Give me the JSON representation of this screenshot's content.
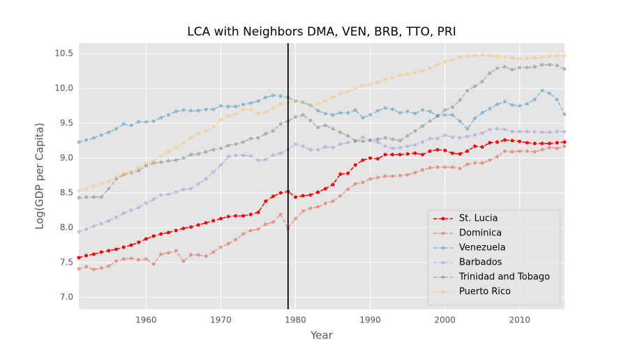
{
  "chart_data": {
    "type": "line",
    "title": "LCA with Neighbors DMA, VEN, BRB, TTO, PRI",
    "x_label": "Year",
    "y_label": "Log(GDP per Capita)",
    "x": [
      1951,
      1952,
      1953,
      1954,
      1955,
      1956,
      1957,
      1958,
      1959,
      1960,
      1961,
      1962,
      1963,
      1964,
      1965,
      1966,
      1967,
      1968,
      1969,
      1970,
      1971,
      1972,
      1973,
      1974,
      1975,
      1976,
      1977,
      1978,
      1979,
      1980,
      1981,
      1982,
      1983,
      1984,
      1985,
      1986,
      1987,
      1988,
      1989,
      1990,
      1991,
      1992,
      1993,
      1994,
      1995,
      1996,
      1997,
      1998,
      1999,
      2000,
      2001,
      2002,
      2003,
      2004,
      2005,
      2006,
      2007,
      2008,
      2009,
      2010,
      2011,
      2012,
      2013,
      2014,
      2015,
      2016
    ],
    "series": [
      {
        "name": "St. Lucia",
        "color": "#ff0000",
        "opacity": 1,
        "values": [
          7.57,
          7.6,
          7.62,
          7.65,
          7.67,
          7.69,
          7.72,
          7.75,
          7.79,
          7.84,
          7.88,
          7.91,
          7.93,
          7.96,
          7.99,
          8.01,
          8.04,
          8.07,
          8.1,
          8.13,
          8.16,
          8.17,
          8.17,
          8.19,
          8.22,
          8.38,
          8.45,
          8.5,
          8.52,
          8.44,
          8.46,
          8.47,
          8.51,
          8.56,
          8.62,
          8.77,
          8.78,
          8.9,
          8.97,
          9.0,
          8.99,
          9.05,
          9.05,
          9.05,
          9.06,
          9.07,
          9.05,
          9.1,
          9.12,
          9.11,
          9.07,
          9.06,
          9.1,
          9.17,
          9.16,
          9.22,
          9.23,
          9.26,
          9.25,
          9.24,
          9.22,
          9.21,
          9.21,
          9.21,
          9.22,
          9.23
        ]
      },
      {
        "name": "Dominica",
        "color": "#e24a33",
        "opacity": 0.5,
        "values": [
          7.41,
          7.44,
          7.4,
          7.42,
          7.45,
          7.52,
          7.55,
          7.56,
          7.54,
          7.55,
          7.48,
          7.62,
          7.64,
          7.67,
          7.52,
          7.61,
          7.61,
          7.59,
          7.65,
          7.72,
          7.77,
          7.83,
          7.91,
          7.96,
          7.98,
          8.05,
          8.08,
          8.19,
          7.99,
          8.13,
          8.24,
          8.28,
          8.3,
          8.35,
          8.38,
          8.46,
          8.55,
          8.63,
          8.65,
          8.7,
          8.72,
          8.74,
          8.74,
          8.75,
          8.76,
          8.79,
          8.83,
          8.86,
          8.87,
          8.87,
          8.87,
          8.85,
          8.91,
          8.93,
          8.93,
          8.97,
          9.02,
          9.1,
          9.09,
          9.1,
          9.1,
          9.09,
          9.12,
          9.15,
          9.14,
          9.17
        ]
      },
      {
        "name": "Venezuela",
        "color": "#348abd",
        "opacity": 0.5,
        "values": [
          9.23,
          9.26,
          9.29,
          9.33,
          9.37,
          9.42,
          9.49,
          9.47,
          9.52,
          9.52,
          9.53,
          9.58,
          9.62,
          9.67,
          9.69,
          9.68,
          9.68,
          9.7,
          9.7,
          9.75,
          9.74,
          9.74,
          9.77,
          9.79,
          9.82,
          9.87,
          9.9,
          9.89,
          9.87,
          9.82,
          9.8,
          9.76,
          9.68,
          9.64,
          9.62,
          9.65,
          9.65,
          9.69,
          9.58,
          9.62,
          9.68,
          9.72,
          9.7,
          9.65,
          9.67,
          9.64,
          9.69,
          9.67,
          9.61,
          9.62,
          9.62,
          9.53,
          9.42,
          9.57,
          9.65,
          9.71,
          9.77,
          9.81,
          9.76,
          9.75,
          9.78,
          9.84,
          9.97,
          9.93,
          9.84,
          9.63
        ]
      },
      {
        "name": "Barbados",
        "color": "#988ed5",
        "opacity": 0.5,
        "values": [
          7.94,
          7.98,
          8.02,
          8.06,
          8.1,
          8.15,
          8.21,
          8.25,
          8.29,
          8.35,
          8.41,
          8.47,
          8.48,
          8.51,
          8.55,
          8.56,
          8.63,
          8.7,
          8.8,
          8.9,
          9.02,
          9.04,
          9.04,
          9.03,
          8.97,
          8.98,
          9.04,
          9.07,
          9.12,
          9.2,
          9.17,
          9.12,
          9.12,
          9.16,
          9.15,
          9.2,
          9.22,
          9.24,
          9.3,
          9.25,
          9.23,
          9.17,
          9.14,
          9.15,
          9.17,
          9.19,
          9.23,
          9.28,
          9.28,
          9.33,
          9.3,
          9.29,
          9.31,
          9.33,
          9.36,
          9.41,
          9.42,
          9.41,
          9.38,
          9.38,
          9.38,
          9.38,
          9.37,
          9.37,
          9.38,
          9.38
        ]
      },
      {
        "name": "Trinidad and Tobago",
        "color": "#777777",
        "opacity": 0.5,
        "values": [
          8.43,
          8.44,
          8.44,
          8.44,
          8.56,
          8.7,
          8.76,
          8.79,
          8.82,
          8.89,
          8.93,
          8.94,
          8.96,
          8.97,
          9.0,
          9.05,
          9.06,
          9.09,
          9.12,
          9.14,
          9.18,
          9.2,
          9.23,
          9.28,
          9.29,
          9.35,
          9.39,
          9.49,
          9.53,
          9.59,
          9.62,
          9.54,
          9.44,
          9.47,
          9.42,
          9.37,
          9.32,
          9.25,
          9.24,
          9.26,
          9.27,
          9.29,
          9.27,
          9.25,
          9.32,
          9.39,
          9.46,
          9.53,
          9.6,
          9.69,
          9.73,
          9.83,
          9.97,
          10.03,
          10.1,
          10.22,
          10.29,
          10.31,
          10.27,
          10.3,
          10.3,
          10.31,
          10.34,
          10.34,
          10.33,
          10.28
        ]
      },
      {
        "name": "Puerto Rico",
        "color": "#fbc15e",
        "opacity": 0.5,
        "values": [
          8.53,
          8.56,
          8.6,
          8.63,
          8.66,
          8.73,
          8.78,
          8.8,
          8.86,
          8.92,
          8.96,
          9.03,
          9.09,
          9.15,
          9.22,
          9.29,
          9.35,
          9.39,
          9.45,
          9.55,
          9.6,
          9.63,
          9.7,
          9.69,
          9.64,
          9.66,
          9.72,
          9.78,
          9.79,
          9.82,
          9.8,
          9.75,
          9.78,
          9.82,
          9.87,
          9.92,
          9.96,
          10.0,
          10.04,
          10.06,
          10.09,
          10.13,
          10.16,
          10.19,
          10.21,
          10.23,
          10.25,
          10.29,
          10.34,
          10.38,
          10.41,
          10.45,
          10.46,
          10.47,
          10.48,
          10.47,
          10.46,
          10.45,
          10.44,
          10.42,
          10.43,
          10.44,
          10.45,
          10.46,
          10.47,
          10.47
        ]
      }
    ],
    "vline_x": 1979,
    "xlim": [
      1951,
      2016
    ],
    "ylim": [
      6.83,
      10.65
    ],
    "xticks": [
      1960,
      1970,
      1980,
      1990,
      2000,
      2010
    ],
    "yticks": [
      {
        "value": 7,
        "label": "7.0"
      },
      7.5,
      {
        "value": 8,
        "label": "8.0"
      },
      8.5,
      {
        "value": 9,
        "label": "9.0"
      },
      9.5,
      {
        "value": 10,
        "label": "10.0"
      },
      10.5
    ],
    "grid": true,
    "legend": "lower right"
  }
}
